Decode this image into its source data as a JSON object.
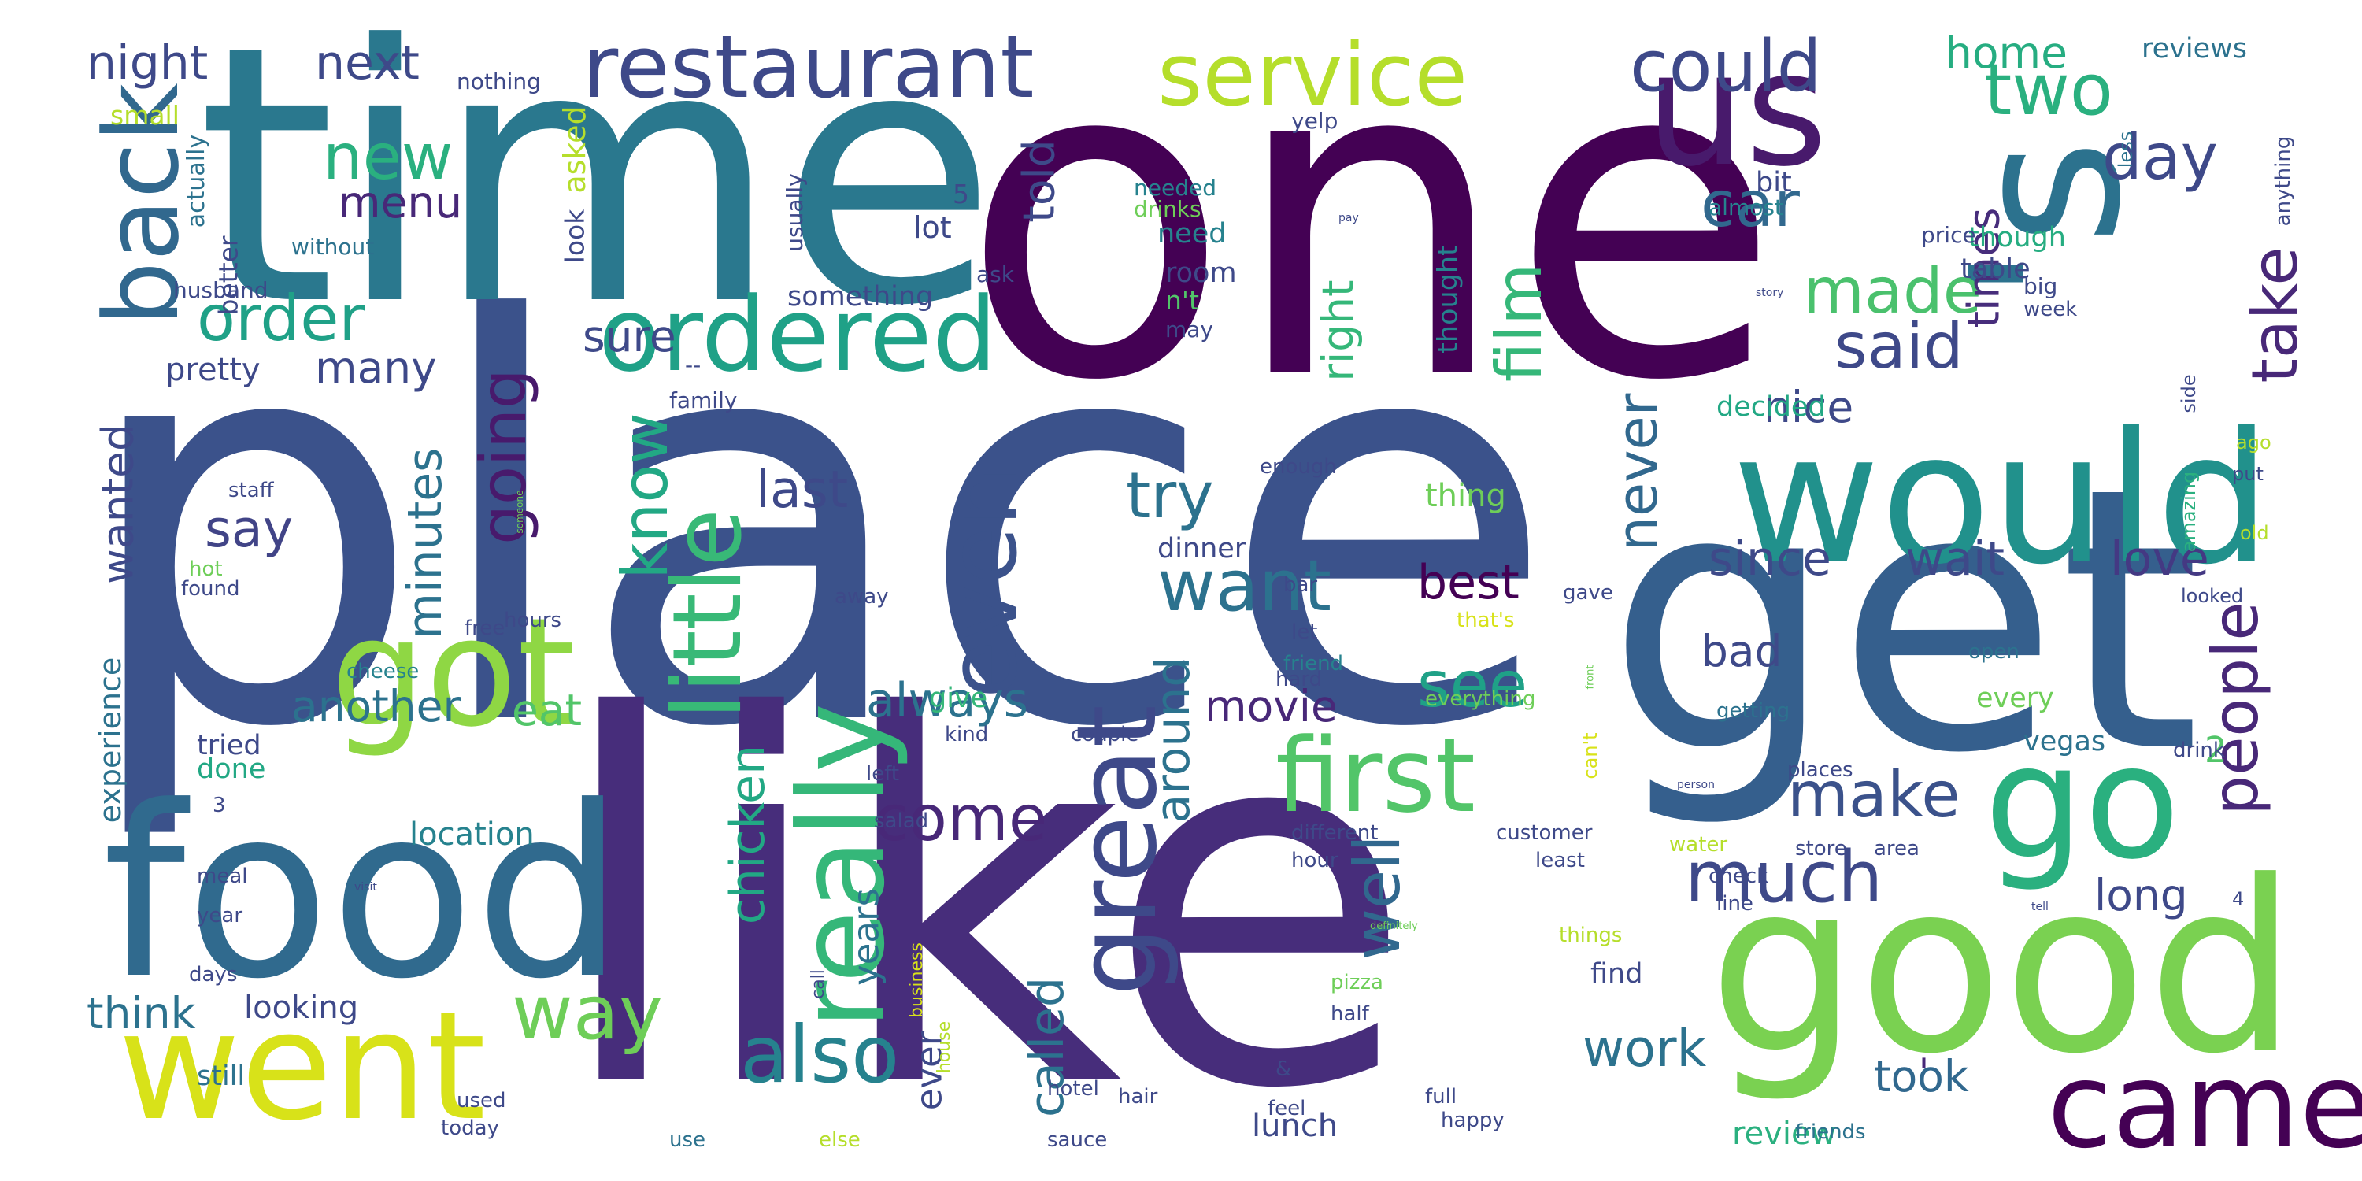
{
  "word_cloud": {
    "words": [
      {
        "text": "place",
        "weight": 1.0,
        "color": "#3b528b"
      },
      {
        "text": "like",
        "weight": 0.95,
        "color": "#472d7b"
      },
      {
        "text": "one",
        "weight": 0.92,
        "color": "#440154"
      },
      {
        "text": "time",
        "weight": 0.85,
        "color": "#2a788e"
      },
      {
        "text": "get",
        "weight": 0.8,
        "color": "#355f8d"
      },
      {
        "text": "food",
        "weight": 0.7,
        "color": "#306a8e"
      },
      {
        "text": "good",
        "weight": 0.7,
        "color": "#7ad151"
      },
      {
        "text": "'s",
        "weight": 0.55,
        "color": "#2c728e"
      },
      {
        "text": "would",
        "weight": 0.5,
        "color": "#21918c"
      },
      {
        "text": "us",
        "weight": 0.45,
        "color": "#481a6c"
      },
      {
        "text": "went",
        "weight": 0.45,
        "color": "#d8e219"
      },
      {
        "text": "go",
        "weight": 0.42,
        "color": "#2ab07f"
      },
      {
        "text": "got",
        "weight": 0.4,
        "color": "#8fd744"
      },
      {
        "text": "came",
        "weight": 0.32,
        "color": "#440154"
      },
      {
        "text": "really",
        "weight": 0.35,
        "color": "#35b779"
      },
      {
        "text": "first",
        "weight": 0.33,
        "color": "#52c569"
      },
      {
        "text": "ordered",
        "weight": 0.3,
        "color": "#1fa187"
      },
      {
        "text": "great",
        "weight": 0.32,
        "color": "#3e4989"
      },
      {
        "text": "back",
        "weight": 0.3,
        "color": "#31688e"
      },
      {
        "text": "restaurant",
        "weight": 0.27,
        "color": "#3e4989"
      },
      {
        "text": "service",
        "weight": 0.27,
        "color": "#b5de2b"
      },
      {
        "text": "little",
        "weight": 0.28,
        "color": "#38b977"
      },
      {
        "text": "also",
        "weight": 0.25,
        "color": "#26828e"
      },
      {
        "text": "even",
        "weight": 0.27,
        "color": "#3b528b"
      },
      {
        "text": "could",
        "weight": 0.22,
        "color": "#3e4989"
      },
      {
        "text": "two",
        "weight": 0.22,
        "color": "#2ab07f"
      },
      {
        "text": "way",
        "weight": 0.22,
        "color": "#6ece58"
      },
      {
        "text": "want",
        "weight": 0.22,
        "color": "#2c728e"
      },
      {
        "text": "much",
        "weight": 0.22,
        "color": "#3e4989"
      },
      {
        "text": "make",
        "weight": 0.2,
        "color": "#3b528b"
      },
      {
        "text": "made",
        "weight": 0.2,
        "color": "#4ac16d"
      },
      {
        "text": "day",
        "weight": 0.2,
        "color": "#3e4989"
      },
      {
        "text": "new",
        "weight": 0.2,
        "color": "#2ab07f"
      },
      {
        "text": "order",
        "weight": 0.2,
        "color": "#1fa187"
      },
      {
        "text": "going",
        "weight": 0.2,
        "color": "#481a6c"
      },
      {
        "text": "know",
        "weight": 0.2,
        "color": "#22a884"
      },
      {
        "text": "see",
        "weight": 0.2,
        "color": "#1fa187"
      },
      {
        "text": "come",
        "weight": 0.2,
        "color": "#482878"
      },
      {
        "text": "try",
        "weight": 0.19,
        "color": "#2c728e"
      },
      {
        "text": "car",
        "weight": 0.18,
        "color": "#31688e"
      },
      {
        "text": "said",
        "weight": 0.18,
        "color": "#3e4989"
      },
      {
        "text": "take",
        "weight": 0.18,
        "color": "#482878"
      },
      {
        "text": "people",
        "weight": 0.18,
        "color": "#482878"
      },
      {
        "text": "film",
        "weight": 0.18,
        "color": "#35b779"
      },
      {
        "text": "well",
        "weight": 0.18,
        "color": "#31688e"
      },
      {
        "text": "never",
        "weight": 0.16,
        "color": "#31688e"
      },
      {
        "text": "say",
        "weight": 0.15,
        "color": "#414487"
      },
      {
        "text": "last",
        "weight": 0.14,
        "color": "#3e4989"
      },
      {
        "text": "work",
        "weight": 0.14,
        "color": "#2c728e"
      },
      {
        "text": "wait",
        "weight": 0.14,
        "color": "#3e4989"
      },
      {
        "text": "since",
        "weight": 0.14,
        "color": "#3e4989"
      },
      {
        "text": "love",
        "weight": 0.14,
        "color": "#443983"
      },
      {
        "text": "best",
        "weight": 0.14,
        "color": "#440154"
      },
      {
        "text": "around",
        "weight": 0.14,
        "color": "#2c728e"
      },
      {
        "text": "called",
        "weight": 0.14,
        "color": "#2c728e"
      },
      {
        "text": "chicken",
        "weight": 0.14,
        "color": "#22a884"
      },
      {
        "text": "always",
        "weight": 0.14,
        "color": "#2c728e"
      },
      {
        "text": "minutes",
        "weight": 0.14,
        "color": "#2c728e"
      },
      {
        "text": "night",
        "weight": 0.12,
        "color": "#3e4989"
      },
      {
        "text": "next",
        "weight": 0.12,
        "color": "#3e4989"
      },
      {
        "text": "home",
        "weight": 0.12,
        "color": "#26ad81"
      },
      {
        "text": "menu",
        "weight": 0.12,
        "color": "#482878"
      },
      {
        "text": "sure",
        "weight": 0.12,
        "color": "#3e4989"
      },
      {
        "text": "many",
        "weight": 0.12,
        "color": "#3e4989"
      },
      {
        "text": "nice",
        "weight": 0.12,
        "color": "#3e4989"
      },
      {
        "text": "times",
        "weight": 0.12,
        "color": "#472d7b"
      },
      {
        "text": "right",
        "weight": 0.12,
        "color": "#35b779"
      },
      {
        "text": "told",
        "weight": 0.12,
        "color": "#3e4989"
      },
      {
        "text": "wanted",
        "weight": 0.12,
        "color": "#3e4989"
      },
      {
        "text": "another",
        "weight": 0.12,
        "color": "#2c728e"
      },
      {
        "text": "eat",
        "weight": 0.12,
        "color": "#52c569"
      },
      {
        "text": "movie",
        "weight": 0.12,
        "color": "#482878"
      },
      {
        "text": "bad",
        "weight": 0.12,
        "color": "#3e4989"
      },
      {
        "text": "think",
        "weight": 0.12,
        "color": "#2c728e"
      },
      {
        "text": "took",
        "weight": 0.12,
        "color": "#31688e"
      },
      {
        "text": "long",
        "weight": 0.12,
        "color": "#3e4989"
      },
      {
        "text": "years",
        "weight": 0.11,
        "color": "#2c728e"
      },
      {
        "text": "ever",
        "weight": 0.11,
        "color": "#3e4989"
      },
      {
        "text": "-",
        "weight": 0.11,
        "color": "#482878"
      },
      {
        "text": "2",
        "weight": 0.1,
        "color": "#52c569"
      },
      {
        "text": "thing",
        "weight": 0.1,
        "color": "#6ece58"
      },
      {
        "text": "location",
        "weight": 0.1,
        "color": "#26828e"
      },
      {
        "text": "looking",
        "weight": 0.1,
        "color": "#3e4989"
      },
      {
        "text": "review",
        "weight": 0.1,
        "color": "#2ab07f"
      },
      {
        "text": "lunch",
        "weight": 0.1,
        "color": "#3e4989"
      },
      {
        "text": "pretty",
        "weight": 0.1,
        "color": "#3e4989"
      },
      {
        "text": "lot",
        "weight": 0.09,
        "color": "#3e4989"
      },
      {
        "text": "room",
        "weight": 0.09,
        "color": "#3e4989"
      },
      {
        "text": "need",
        "weight": 0.09,
        "color": "#26828e"
      },
      {
        "text": "asked",
        "weight": 0.09,
        "color": "#b5de2b"
      },
      {
        "text": "give",
        "weight": 0.09,
        "color": "#35b779"
      },
      {
        "text": "done",
        "weight": 0.09,
        "color": "#22a884"
      },
      {
        "text": "decided",
        "weight": 0.09,
        "color": "#22a884"
      },
      {
        "text": "every",
        "weight": 0.09,
        "color": "#6ece58"
      },
      {
        "text": "tried",
        "weight": 0.09,
        "color": "#3e4989"
      },
      {
        "text": "still",
        "weight": 0.09,
        "color": "#2c728e"
      },
      {
        "text": "experience",
        "weight": 0.09,
        "color": "#2c728e"
      },
      {
        "text": "find",
        "weight": 0.09,
        "color": "#3e4989"
      },
      {
        "text": "vegas",
        "weight": 0.09,
        "color": "#2c728e"
      },
      {
        "text": "dinner",
        "weight": 0.09,
        "color": "#3e4989"
      },
      {
        "text": "something",
        "weight": 0.09,
        "color": "#3e4989"
      },
      {
        "text": "thought",
        "weight": 0.09,
        "color": "#26828e"
      },
      {
        "text": "though",
        "weight": 0.09,
        "color": "#26ad81"
      },
      {
        "text": "table",
        "weight": 0.09,
        "color": "#3e4989"
      },
      {
        "text": "reviews",
        "weight": 0.09,
        "color": "#2c728e"
      },
      {
        "text": "bit",
        "weight": 0.09,
        "color": "#3e4989"
      },
      {
        "text": "small",
        "weight": 0.08,
        "color": "#b5de2b"
      },
      {
        "text": "nothing",
        "weight": 0.07,
        "color": "#3e4989"
      },
      {
        "text": "look",
        "weight": 0.08,
        "color": "#3e4989"
      },
      {
        "text": "better",
        "weight": 0.08,
        "color": "#3e4989"
      },
      {
        "text": "actually",
        "weight": 0.07,
        "color": "#2c728e"
      },
      {
        "text": "husband",
        "weight": 0.07,
        "color": "#3e4989"
      },
      {
        "text": "without",
        "weight": 0.07,
        "color": "#2c728e"
      },
      {
        "text": "usually",
        "weight": 0.07,
        "color": "#3e4989"
      },
      {
        "text": "5",
        "weight": 0.08,
        "color": "#3e4989"
      },
      {
        "text": "ask",
        "weight": 0.07,
        "color": "#3e4989"
      },
      {
        "text": "--",
        "weight": 0.07,
        "color": "#3e4989"
      },
      {
        "text": "family",
        "weight": 0.07,
        "color": "#3e4989"
      },
      {
        "text": "needed",
        "weight": 0.07,
        "color": "#26828e"
      },
      {
        "text": "drinks",
        "weight": 0.07,
        "color": "#6ece58"
      },
      {
        "text": "n't",
        "weight": 0.08,
        "color": "#52c569"
      },
      {
        "text": "may",
        "weight": 0.07,
        "color": "#3e4989"
      },
      {
        "text": "yelp",
        "weight": 0.07,
        "color": "#3e4989"
      },
      {
        "text": "almost",
        "weight": 0.07,
        "color": "#26828e"
      },
      {
        "text": "price",
        "weight": 0.07,
        "color": "#3e4989"
      },
      {
        "text": "big",
        "weight": 0.07,
        "color": "#3e4989"
      },
      {
        "text": "week",
        "weight": 0.07,
        "color": "#3e4989"
      },
      {
        "text": "less",
        "weight": 0.06,
        "color": "#2c728e"
      },
      {
        "text": "anything",
        "weight": 0.06,
        "color": "#3e4989"
      },
      {
        "text": "side",
        "weight": 0.06,
        "color": "#3e4989"
      },
      {
        "text": "ago",
        "weight": 0.06,
        "color": "#b5de2b"
      },
      {
        "text": "put",
        "weight": 0.06,
        "color": "#3e4989"
      },
      {
        "text": "old",
        "weight": 0.06,
        "color": "#b5de2b"
      },
      {
        "text": "amazing",
        "weight": 0.06,
        "color": "#2ab07f"
      },
      {
        "text": "looked",
        "weight": 0.06,
        "color": "#3e4989"
      },
      {
        "text": "staff",
        "weight": 0.07,
        "color": "#3e4989"
      },
      {
        "text": "hot",
        "weight": 0.07,
        "color": "#6ece58"
      },
      {
        "text": "found",
        "weight": 0.07,
        "color": "#3e4989"
      },
      {
        "text": "free",
        "weight": 0.07,
        "color": "#3e4989"
      },
      {
        "text": "cheese",
        "weight": 0.07,
        "color": "#26828e"
      },
      {
        "text": "hours",
        "weight": 0.07,
        "color": "#3e4989"
      },
      {
        "text": "away",
        "weight": 0.07,
        "color": "#3e4989"
      },
      {
        "text": "bar",
        "weight": 0.07,
        "color": "#3e4989"
      },
      {
        "text": "enough",
        "weight": 0.07,
        "color": "#3e4989"
      },
      {
        "text": "let",
        "weight": 0.07,
        "color": "#3e4989"
      },
      {
        "text": "friend",
        "weight": 0.07,
        "color": "#26828e"
      },
      {
        "text": "hard",
        "weight": 0.07,
        "color": "#3e4989"
      },
      {
        "text": "gave",
        "weight": 0.07,
        "color": "#3e4989"
      },
      {
        "text": "that's",
        "weight": 0.07,
        "color": "#d8e219"
      },
      {
        "text": "everything",
        "weight": 0.07,
        "color": "#6ece58"
      },
      {
        "text": "open",
        "weight": 0.07,
        "color": "#2c728e"
      },
      {
        "text": "getting",
        "weight": 0.07,
        "color": "#2c728e"
      },
      {
        "text": "kind",
        "weight": 0.07,
        "color": "#3e4989"
      },
      {
        "text": "couple",
        "weight": 0.07,
        "color": "#3e4989"
      },
      {
        "text": "left",
        "weight": 0.07,
        "color": "#3e4989"
      },
      {
        "text": "salad",
        "weight": 0.07,
        "color": "#3e4989"
      },
      {
        "text": "3",
        "weight": 0.07,
        "color": "#3e4989"
      },
      {
        "text": "meal",
        "weight": 0.07,
        "color": "#3e4989"
      },
      {
        "text": "can't",
        "weight": 0.07,
        "color": "#d8e219"
      },
      {
        "text": "drink",
        "weight": 0.07,
        "color": "#3e4989"
      },
      {
        "text": "places",
        "weight": 0.07,
        "color": "#3e4989"
      },
      {
        "text": "4",
        "weight": 0.07,
        "color": "#3e4989"
      },
      {
        "text": "different",
        "weight": 0.07,
        "color": "#3e4989"
      },
      {
        "text": "customer",
        "weight": 0.07,
        "color": "#3e4989"
      },
      {
        "text": "water",
        "weight": 0.07,
        "color": "#b5de2b"
      },
      {
        "text": "store",
        "weight": 0.07,
        "color": "#3e4989"
      },
      {
        "text": "area",
        "weight": 0.07,
        "color": "#3e4989"
      },
      {
        "text": "hour",
        "weight": 0.07,
        "color": "#3e4989"
      },
      {
        "text": "least",
        "weight": 0.07,
        "color": "#3e4989"
      },
      {
        "text": "check",
        "weight": 0.07,
        "color": "#3e4989"
      },
      {
        "text": "line",
        "weight": 0.07,
        "color": "#3e4989"
      },
      {
        "text": "year",
        "weight": 0.07,
        "color": "#3e4989"
      },
      {
        "text": "days",
        "weight": 0.07,
        "color": "#3e4989"
      },
      {
        "text": "call",
        "weight": 0.06,
        "color": "#3e4989"
      },
      {
        "text": "business",
        "weight": 0.06,
        "color": "#d8e219"
      },
      {
        "text": "house",
        "weight": 0.06,
        "color": "#b5de2b"
      },
      {
        "text": "pizza",
        "weight": 0.07,
        "color": "#6ece58"
      },
      {
        "text": "half",
        "weight": 0.07,
        "color": "#3e4989"
      },
      {
        "text": "things",
        "weight": 0.07,
        "color": "#b5de2b"
      },
      {
        "text": "hotel",
        "weight": 0.07,
        "color": "#3e4989"
      },
      {
        "text": "&",
        "weight": 0.07,
        "color": "#3e4989"
      },
      {
        "text": "feel",
        "weight": 0.07,
        "color": "#3e4989"
      },
      {
        "text": "full",
        "weight": 0.07,
        "color": "#3e4989"
      },
      {
        "text": "used",
        "weight": 0.07,
        "color": "#3e4989"
      },
      {
        "text": "today",
        "weight": 0.07,
        "color": "#3e4989"
      },
      {
        "text": "use",
        "weight": 0.07,
        "color": "#2c728e"
      },
      {
        "text": "else",
        "weight": 0.07,
        "color": "#b5de2b"
      },
      {
        "text": "sauce",
        "weight": 0.07,
        "color": "#3e4989"
      },
      {
        "text": "hair",
        "weight": 0.07,
        "color": "#3e4989"
      },
      {
        "text": "happy",
        "weight": 0.07,
        "color": "#3e4989"
      },
      {
        "text": "friends",
        "weight": 0.07,
        "color": "#2c728e"
      },
      {
        "text": "pay",
        "weight": 0.03,
        "color": "#3e4989"
      },
      {
        "text": "story",
        "weight": 0.03,
        "color": "#3e4989"
      },
      {
        "text": "someone",
        "weight": 0.02,
        "color": "#6ece58"
      },
      {
        "text": "front",
        "weight": 0.03,
        "color": "#6ece58"
      },
      {
        "text": "person",
        "weight": 0.03,
        "color": "#3e4989"
      },
      {
        "text": "definitely",
        "weight": 0.03,
        "color": "#6ece58"
      },
      {
        "text": "tell",
        "weight": 0.03,
        "color": "#3e4989"
      },
      {
        "text": "visit",
        "weight": 0.03,
        "color": "#3e4989"
      }
    ]
  }
}
